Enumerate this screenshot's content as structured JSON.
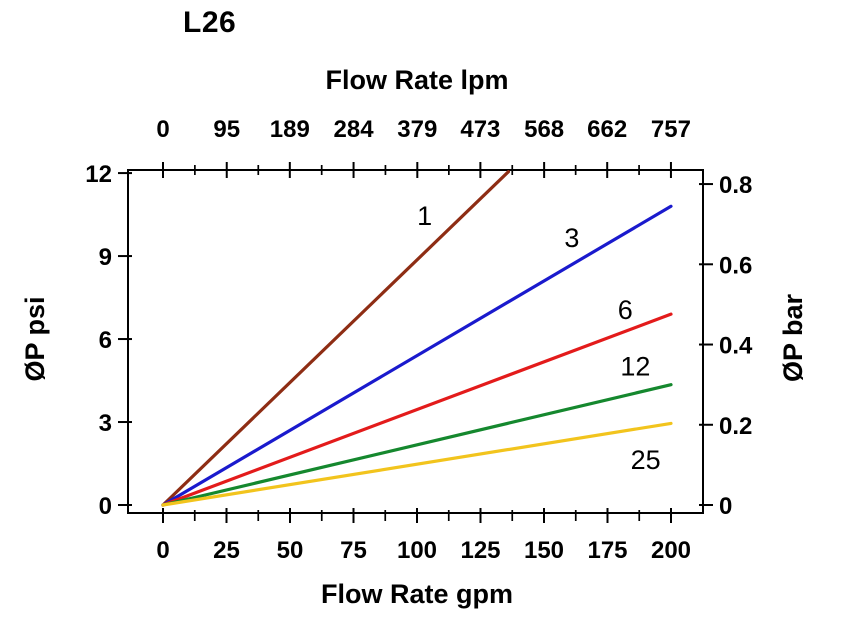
{
  "chart_data": {
    "type": "line",
    "title": "L26",
    "background": "#ffffff",
    "axes": {
      "top": {
        "label": "Flow Rate lpm",
        "ticks": [
          0,
          95,
          189,
          284,
          379,
          473,
          568,
          662,
          757
        ],
        "lpm_per_gpm": 3.78541
      },
      "bottom": {
        "label": "Flow Rate gpm",
        "ticks": [
          0,
          25,
          50,
          75,
          100,
          125,
          150,
          175,
          200
        ],
        "range": [
          0,
          200
        ]
      },
      "left": {
        "label": "ØP psi",
        "ticks": [
          0,
          3,
          6,
          9,
          12
        ],
        "range": [
          0,
          12
        ]
      },
      "right": {
        "label": "ØP bar",
        "ticks": [
          0,
          0.2,
          0.4,
          0.6,
          0.8
        ],
        "psi_per_bar": 14.5038
      }
    },
    "grid": false,
    "legend": "inline-labels",
    "series": [
      {
        "name": "1",
        "color": "#8e2d14",
        "points": [
          [
            0,
            0
          ],
          [
            136,
            12.05
          ]
        ],
        "label_pos": [
          103,
          10.45
        ]
      },
      {
        "name": "3",
        "color": "#1a1acd",
        "points": [
          [
            0,
            0
          ],
          [
            200,
            10.8
          ]
        ],
        "label_pos": [
          161,
          9.65
        ]
      },
      {
        "name": "6",
        "color": "#e31b1b",
        "points": [
          [
            0,
            0
          ],
          [
            200,
            6.9
          ]
        ],
        "label_pos": [
          182,
          7.05
        ]
      },
      {
        "name": "12",
        "color": "#15882e",
        "points": [
          [
            0,
            0
          ],
          [
            200,
            4.35
          ]
        ],
        "label_pos": [
          186,
          5.0
        ]
      },
      {
        "name": "25",
        "color": "#f2c41d",
        "points": [
          [
            0,
            0
          ],
          [
            200,
            2.95
          ]
        ],
        "label_pos": [
          190,
          1.62
        ]
      }
    ]
  }
}
